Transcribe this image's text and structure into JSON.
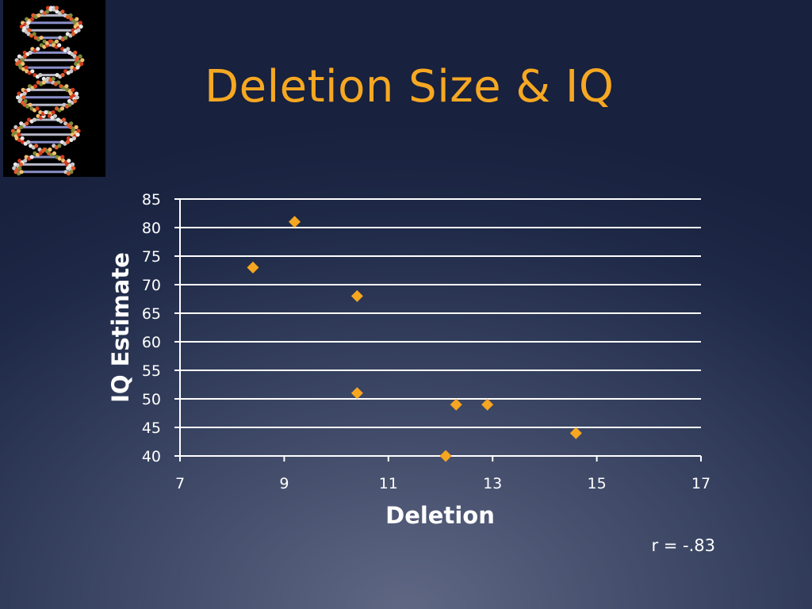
{
  "slide": {
    "title": "Deletion Size & IQ"
  },
  "colors": {
    "title": "#f6a822",
    "marker": "#f6a620",
    "text": "#ffffff",
    "gridline": "#ffffff"
  },
  "images": {
    "dna_picture": "dna-double-helix-molecular-model"
  },
  "chart_data": {
    "type": "scatter",
    "title": "",
    "xlabel": "Deletion",
    "ylabel": "IQ Estimate",
    "xlim": [
      7,
      17
    ],
    "ylim": [
      40,
      85
    ],
    "xticks": [
      7,
      9,
      11,
      13,
      15,
      17
    ],
    "yticks": [
      40,
      45,
      50,
      55,
      60,
      65,
      70,
      75,
      80,
      85
    ],
    "grid": "horizontal",
    "marker": "diamond",
    "points": [
      {
        "x": 8.4,
        "y": 73
      },
      {
        "x": 9.2,
        "y": 81
      },
      {
        "x": 10.4,
        "y": 68
      },
      {
        "x": 10.4,
        "y": 51
      },
      {
        "x": 12.1,
        "y": 40
      },
      {
        "x": 12.3,
        "y": 49
      },
      {
        "x": 12.9,
        "y": 49
      },
      {
        "x": 14.6,
        "y": 44
      }
    ],
    "annotation": "r = -.83"
  }
}
